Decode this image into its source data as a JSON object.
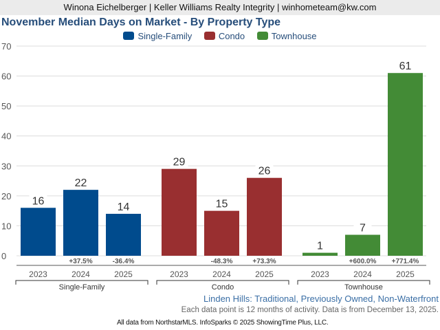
{
  "header": {
    "agent_line": "Winona Eichelberger | Keller Williams Realty Integrity | winhometeam@kw.com"
  },
  "chart_data": {
    "type": "bar",
    "title": "November Median Days on Market - By Property Type",
    "xlabel": "",
    "ylabel": "",
    "ylim": [
      0,
      70
    ],
    "yticks": [
      0,
      10,
      20,
      30,
      40,
      50,
      60,
      70
    ],
    "grid": true,
    "legend_position": "top-center",
    "categories": [
      "2023",
      "2024",
      "2025"
    ],
    "series": [
      {
        "name": "Single-Family",
        "color": "#004b8d",
        "values": [
          16,
          22,
          14
        ],
        "changes": [
          "",
          "+37.5%",
          "-36.4%"
        ]
      },
      {
        "name": "Condo",
        "color": "#992f30",
        "values": [
          29,
          15,
          26
        ],
        "changes": [
          "",
          "-48.3%",
          "+73.3%"
        ]
      },
      {
        "name": "Townhouse",
        "color": "#438b36",
        "values": [
          1,
          7,
          61
        ],
        "changes": [
          "",
          "+600.0%",
          "+771.4%"
        ]
      }
    ]
  },
  "footer": {
    "subtitle": "Linden Hills: Traditional, Previously Owned, Non-Waterfront",
    "note": "Each data point is 12 months of activity. Data is from December 13, 2025.",
    "credit": "All data from NorthstarMLS. InfoSparks © 2025 ShowingTime Plus, LLC."
  }
}
